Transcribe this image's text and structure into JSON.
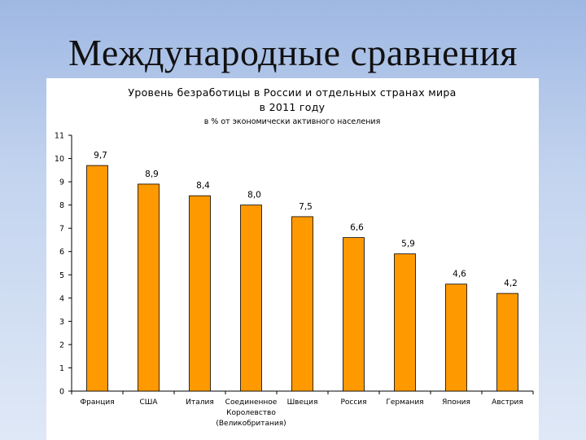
{
  "slide": {
    "title": "Международные сравнения"
  },
  "chart_data": {
    "type": "bar",
    "title_lines": [
      "Уровень безработицы в России и отдельных странах мира",
      "в 2011 году"
    ],
    "subtitle": "в % от экономически активного населения",
    "categories": [
      [
        "Франция"
      ],
      [
        "США"
      ],
      [
        "Италия"
      ],
      [
        "Соединенное",
        "Королевство",
        "(Великобритания)"
      ],
      [
        "Швеция"
      ],
      [
        "Россия"
      ],
      [
        "Германия"
      ],
      [
        "Япония"
      ],
      [
        "Австрия"
      ]
    ],
    "values": [
      9.7,
      8.9,
      8.4,
      8.0,
      7.5,
      6.6,
      5.9,
      4.6,
      4.2
    ],
    "data_labels": [
      "9,7",
      "8,9",
      "8,4",
      "8,0",
      "7,5",
      "6,6",
      "5,9",
      "4,6",
      "4,2"
    ],
    "ylim": [
      0,
      11
    ],
    "yticks": [
      0,
      1,
      2,
      3,
      4,
      5,
      6,
      7,
      8,
      9,
      10,
      11
    ],
    "xlabel": "",
    "ylabel": "",
    "grid": false,
    "bar_color": "#FF9900",
    "bar_edge_color": "#000000"
  }
}
